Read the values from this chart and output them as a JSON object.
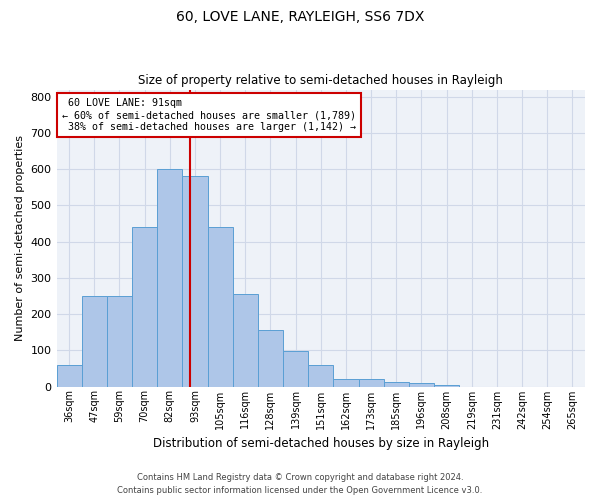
{
  "title": "60, LOVE LANE, RAYLEIGH, SS6 7DX",
  "subtitle": "Size of property relative to semi-detached houses in Rayleigh",
  "xlabel": "Distribution of semi-detached houses by size in Rayleigh",
  "ylabel": "Number of semi-detached properties",
  "categories": [
    "36sqm",
    "47sqm",
    "59sqm",
    "70sqm",
    "82sqm",
    "93sqm",
    "105sqm",
    "116sqm",
    "128sqm",
    "139sqm",
    "151sqm",
    "162sqm",
    "173sqm",
    "185sqm",
    "196sqm",
    "208sqm",
    "219sqm",
    "231sqm",
    "242sqm",
    "254sqm",
    "265sqm"
  ],
  "values": [
    60,
    250,
    250,
    440,
    600,
    580,
    440,
    255,
    155,
    98,
    60,
    22,
    22,
    12,
    10,
    5,
    0,
    0,
    0,
    0,
    0
  ],
  "bar_color": "#aec6e8",
  "bar_edge_color": "#5a9fd4",
  "grid_color": "#d0d8e8",
  "bg_color": "#eef2f8",
  "red_line_label": "60 LOVE LANE: 91sqm",
  "pct_smaller": "60%",
  "pct_smaller_n": "1,789",
  "pct_larger": "38%",
  "pct_larger_n": "1,142",
  "annotation_box_color": "#ffffff",
  "annotation_box_edge": "#cc0000",
  "red_line_color": "#cc0000",
  "property_sqm": 91,
  "ylim": [
    0,
    820
  ],
  "yticks": [
    0,
    100,
    200,
    300,
    400,
    500,
    600,
    700,
    800
  ],
  "footer1": "Contains HM Land Registry data © Crown copyright and database right 2024.",
  "footer2": "Contains public sector information licensed under the Open Government Licence v3.0."
}
